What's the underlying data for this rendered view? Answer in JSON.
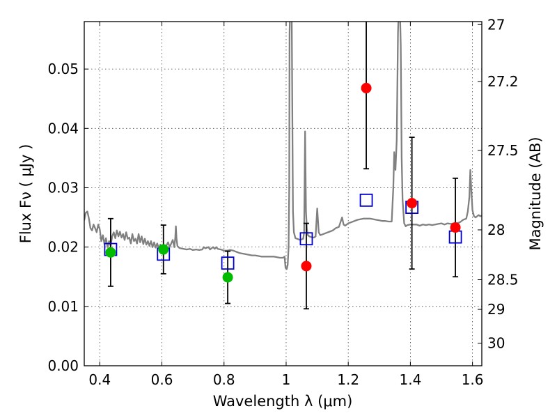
{
  "chart_data": {
    "type": "scatter",
    "title": "",
    "xlabel": "Wavelength  λ (μm)",
    "ylabel": "Flux  Fν  ( μJy )",
    "y2label": "Magnitude (AB)",
    "xlim": [
      0.35,
      1.63
    ],
    "ylim": [
      0.0,
      0.058
    ],
    "grid": true,
    "xticks": [
      0.4,
      0.6,
      0.8,
      1.0,
      1.2,
      1.4,
      1.6
    ],
    "xtick_labels": [
      "0.4",
      "0.6",
      "0.8",
      "1",
      "1.2",
      "1.4",
      "1.6"
    ],
    "yticks": [
      0.0,
      0.01,
      0.02,
      0.03,
      0.04,
      0.05
    ],
    "ytick_labels": [
      "0.00",
      "0.01",
      "0.02",
      "0.03",
      "0.04",
      "0.05"
    ],
    "y2ticks": [
      {
        "label": "27",
        "flux": 0.0575
      },
      {
        "label": "27.2",
        "flux": 0.0479
      },
      {
        "label": "27.5",
        "flux": 0.0363
      },
      {
        "label": "28",
        "flux": 0.0229
      },
      {
        "label": "28.5",
        "flux": 0.0145
      },
      {
        "label": "29",
        "flux": 0.0095
      },
      {
        "label": "30",
        "flux": 0.0038
      }
    ],
    "colors": {
      "template": "#808080",
      "model": "#0000cc",
      "optical": "#00bb00",
      "nir": "#ff0000",
      "errorbar": "#000000"
    },
    "series": [
      {
        "kind": "line",
        "points": [
          [
            0.35,
            0.0245
          ],
          [
            0.355,
            0.0258
          ],
          [
            0.36,
            0.026
          ],
          [
            0.365,
            0.0248
          ],
          [
            0.37,
            0.0232
          ],
          [
            0.375,
            0.0228
          ],
          [
            0.38,
            0.0238
          ],
          [
            0.385,
            0.0232
          ],
          [
            0.39,
            0.0225
          ],
          [
            0.395,
            0.0238
          ],
          [
            0.4,
            0.023
          ],
          [
            0.405,
            0.021
          ],
          [
            0.41,
            0.022
          ],
          [
            0.415,
            0.0205
          ],
          [
            0.42,
            0.0215
          ],
          [
            0.425,
            0.02
          ],
          [
            0.43,
            0.021
          ],
          [
            0.435,
            0.0202
          ],
          [
            0.44,
            0.0218
          ],
          [
            0.445,
            0.0225
          ],
          [
            0.45,
            0.0215
          ],
          [
            0.455,
            0.0228
          ],
          [
            0.46,
            0.0218
          ],
          [
            0.465,
            0.0226
          ],
          [
            0.47,
            0.0216
          ],
          [
            0.475,
            0.0222
          ],
          [
            0.48,
            0.0212
          ],
          [
            0.485,
            0.0225
          ],
          [
            0.49,
            0.0214
          ],
          [
            0.495,
            0.0216
          ],
          [
            0.5,
            0.0206
          ],
          [
            0.505,
            0.0222
          ],
          [
            0.51,
            0.021
          ],
          [
            0.515,
            0.0214
          ],
          [
            0.52,
            0.0206
          ],
          [
            0.525,
            0.0222
          ],
          [
            0.53,
            0.0208
          ],
          [
            0.535,
            0.0218
          ],
          [
            0.54,
            0.0205
          ],
          [
            0.545,
            0.0214
          ],
          [
            0.55,
            0.0204
          ],
          [
            0.555,
            0.021
          ],
          [
            0.56,
            0.0202
          ],
          [
            0.565,
            0.021
          ],
          [
            0.57,
            0.02
          ],
          [
            0.575,
            0.0208
          ],
          [
            0.58,
            0.0199
          ],
          [
            0.585,
            0.0206
          ],
          [
            0.59,
            0.0198
          ],
          [
            0.595,
            0.0204
          ],
          [
            0.6,
            0.0198
          ],
          [
            0.605,
            0.0202
          ],
          [
            0.61,
            0.0198
          ],
          [
            0.615,
            0.0203
          ],
          [
            0.62,
            0.0208
          ],
          [
            0.625,
            0.02
          ],
          [
            0.63,
            0.0206
          ],
          [
            0.635,
            0.0212
          ],
          [
            0.64,
            0.02
          ],
          [
            0.643,
            0.0215
          ],
          [
            0.645,
            0.0235
          ],
          [
            0.647,
            0.0215
          ],
          [
            0.65,
            0.0202
          ],
          [
            0.655,
            0.0199
          ],
          [
            0.66,
            0.0198
          ],
          [
            0.67,
            0.0197
          ],
          [
            0.68,
            0.0196
          ],
          [
            0.69,
            0.0197
          ],
          [
            0.7,
            0.0195
          ],
          [
            0.71,
            0.0196
          ],
          [
            0.72,
            0.0195
          ],
          [
            0.73,
            0.0196
          ],
          [
            0.735,
            0.02
          ],
          [
            0.74,
            0.0198
          ],
          [
            0.75,
            0.02
          ],
          [
            0.755,
            0.0196
          ],
          [
            0.76,
            0.0198
          ],
          [
            0.765,
            0.02
          ],
          [
            0.77,
            0.0197
          ],
          [
            0.775,
            0.02
          ],
          [
            0.78,
            0.0197
          ],
          [
            0.79,
            0.0196
          ],
          [
            0.8,
            0.0194
          ],
          [
            0.81,
            0.0194
          ],
          [
            0.82,
            0.0195
          ],
          [
            0.83,
            0.0194
          ],
          [
            0.84,
            0.0192
          ],
          [
            0.85,
            0.019
          ],
          [
            0.86,
            0.0189
          ],
          [
            0.87,
            0.0188
          ],
          [
            0.88,
            0.0187
          ],
          [
            0.89,
            0.0186
          ],
          [
            0.9,
            0.0186
          ],
          [
            0.91,
            0.0185
          ],
          [
            0.92,
            0.0184
          ],
          [
            0.93,
            0.0184
          ],
          [
            0.94,
            0.0184
          ],
          [
            0.95,
            0.0184
          ],
          [
            0.96,
            0.0184
          ],
          [
            0.97,
            0.0183
          ],
          [
            0.98,
            0.0182
          ],
          [
            0.99,
            0.0182
          ],
          [
            0.995,
            0.0184
          ],
          [
            0.998,
            0.0165
          ],
          [
            1.002,
            0.0163
          ],
          [
            1.005,
            0.017
          ],
          [
            1.008,
            0.02
          ],
          [
            1.01,
            0.03
          ],
          [
            1.011,
            0.056
          ],
          [
            1.013,
            0.061
          ],
          [
            1.016,
            0.061
          ],
          [
            1.018,
            0.059
          ],
          [
            1.02,
            0.042
          ],
          [
            1.022,
            0.026
          ],
          [
            1.025,
            0.0225
          ],
          [
            1.03,
            0.0215
          ],
          [
            1.035,
            0.0214
          ],
          [
            1.04,
            0.0213
          ],
          [
            1.045,
            0.0212
          ],
          [
            1.05,
            0.0213
          ],
          [
            1.055,
            0.0214
          ],
          [
            1.058,
            0.0225
          ],
          [
            1.061,
            0.0395
          ],
          [
            1.064,
            0.026
          ],
          [
            1.067,
            0.023
          ],
          [
            1.07,
            0.022
          ],
          [
            1.075,
            0.0218
          ],
          [
            1.08,
            0.0217
          ],
          [
            1.09,
            0.0216
          ],
          [
            1.095,
            0.0218
          ],
          [
            1.1,
            0.0265
          ],
          [
            1.105,
            0.0225
          ],
          [
            1.11,
            0.022
          ],
          [
            1.12,
            0.0222
          ],
          [
            1.13,
            0.0224
          ],
          [
            1.14,
            0.0226
          ],
          [
            1.15,
            0.0228
          ],
          [
            1.16,
            0.0232
          ],
          [
            1.17,
            0.0234
          ],
          [
            1.18,
            0.025
          ],
          [
            1.185,
            0.0238
          ],
          [
            1.19,
            0.0236
          ],
          [
            1.2,
            0.024
          ],
          [
            1.21,
            0.0242
          ],
          [
            1.22,
            0.0244
          ],
          [
            1.23,
            0.0246
          ],
          [
            1.24,
            0.0247
          ],
          [
            1.25,
            0.0248
          ],
          [
            1.26,
            0.0248
          ],
          [
            1.27,
            0.0248
          ],
          [
            1.28,
            0.0247
          ],
          [
            1.29,
            0.0246
          ],
          [
            1.3,
            0.0245
          ],
          [
            1.31,
            0.0244
          ],
          [
            1.32,
            0.0244
          ],
          [
            1.33,
            0.0243
          ],
          [
            1.34,
            0.0243
          ],
          [
            1.345,
            0.03
          ],
          [
            1.348,
            0.036
          ],
          [
            1.352,
            0.033
          ],
          [
            1.356,
            0.038
          ],
          [
            1.36,
            0.056
          ],
          [
            1.363,
            0.061
          ],
          [
            1.366,
            0.061
          ],
          [
            1.369,
            0.054
          ],
          [
            1.372,
            0.035
          ],
          [
            1.375,
            0.028
          ],
          [
            1.38,
            0.024
          ],
          [
            1.385,
            0.0235
          ],
          [
            1.39,
            0.0237
          ],
          [
            1.4,
            0.0238
          ],
          [
            1.41,
            0.0238
          ],
          [
            1.42,
            0.0238
          ],
          [
            1.43,
            0.0236
          ],
          [
            1.44,
            0.0238
          ],
          [
            1.45,
            0.0237
          ],
          [
            1.46,
            0.0238
          ],
          [
            1.47,
            0.0237
          ],
          [
            1.48,
            0.0238
          ],
          [
            1.49,
            0.0239
          ],
          [
            1.5,
            0.024
          ],
          [
            1.51,
            0.0238
          ],
          [
            1.52,
            0.024
          ],
          [
            1.53,
            0.0239
          ],
          [
            1.54,
            0.024
          ],
          [
            1.55,
            0.024
          ],
          [
            1.56,
            0.0242
          ],
          [
            1.57,
            0.0246
          ],
          [
            1.58,
            0.0248
          ],
          [
            1.585,
            0.026
          ],
          [
            1.59,
            0.0285
          ],
          [
            1.593,
            0.033
          ],
          [
            1.596,
            0.03
          ],
          [
            1.6,
            0.0262
          ],
          [
            1.605,
            0.0252
          ],
          [
            1.61,
            0.025
          ],
          [
            1.615,
            0.0252
          ],
          [
            1.62,
            0.0254
          ],
          [
            1.625,
            0.0252
          ],
          [
            1.63,
            0.0253
          ]
        ]
      },
      {
        "kind": "open-square",
        "points": [
          {
            "x": 0.435,
            "y": 0.0196
          },
          {
            "x": 0.605,
            "y": 0.0188
          },
          {
            "x": 0.812,
            "y": 0.0173
          },
          {
            "x": 1.065,
            "y": 0.0214
          },
          {
            "x": 1.258,
            "y": 0.0279
          },
          {
            "x": 1.405,
            "y": 0.0267
          },
          {
            "x": 1.545,
            "y": 0.0217
          }
        ]
      },
      {
        "kind": "filled-circle",
        "points": [
          {
            "x": 0.435,
            "y": 0.0191,
            "err": 0.0057
          },
          {
            "x": 0.605,
            "y": 0.0196,
            "err": 0.0041
          },
          {
            "x": 0.812,
            "y": 0.0149,
            "err": 0.0044
          }
        ]
      },
      {
        "kind": "filled-circle",
        "points": [
          {
            "x": 1.065,
            "y": 0.0168,
            "err": 0.0072
          },
          {
            "x": 1.258,
            "y": 0.0468,
            "err": 0.0136
          },
          {
            "x": 1.405,
            "y": 0.0274,
            "err": 0.0111
          },
          {
            "x": 1.545,
            "y": 0.0233,
            "err": 0.0083
          }
        ]
      }
    ]
  }
}
